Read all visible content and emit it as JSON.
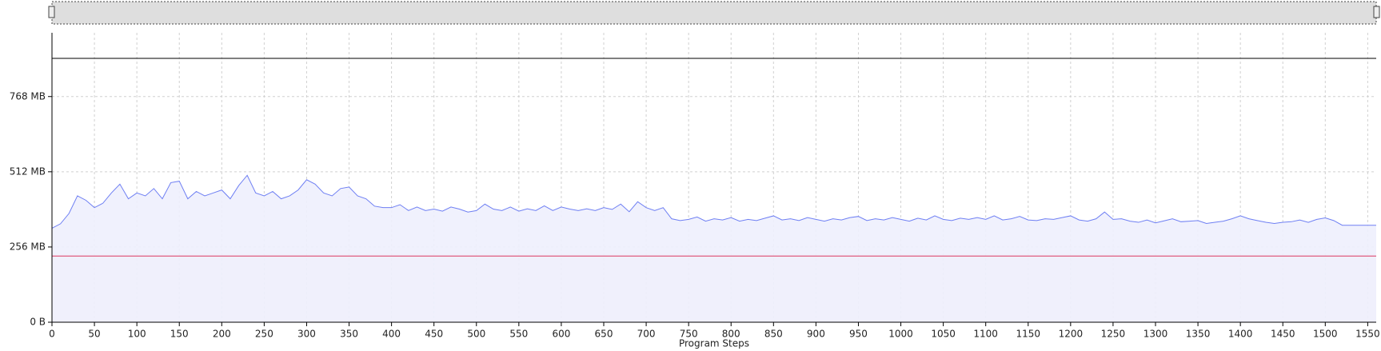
{
  "chart_data": {
    "type": "line",
    "x_label": "Program Steps",
    "x": [
      0,
      10,
      20,
      30,
      40,
      50,
      60,
      70,
      80,
      90,
      100,
      110,
      120,
      130,
      140,
      150,
      160,
      170,
      180,
      190,
      200,
      210,
      220,
      230,
      240,
      250,
      260,
      270,
      280,
      290,
      300,
      310,
      320,
      330,
      340,
      350,
      360,
      370,
      380,
      390,
      400,
      410,
      420,
      430,
      440,
      450,
      460,
      470,
      480,
      490,
      500,
      510,
      520,
      530,
      540,
      550,
      560,
      570,
      580,
      590,
      600,
      610,
      620,
      630,
      640,
      650,
      660,
      670,
      680,
      690,
      700,
      710,
      720,
      730,
      740,
      750,
      760,
      770,
      780,
      790,
      800,
      810,
      820,
      830,
      840,
      850,
      860,
      870,
      880,
      890,
      900,
      910,
      920,
      930,
      940,
      950,
      960,
      970,
      980,
      990,
      1000,
      1010,
      1020,
      1030,
      1040,
      1050,
      1060,
      1070,
      1080,
      1090,
      1100,
      1110,
      1120,
      1130,
      1140,
      1150,
      1160,
      1170,
      1180,
      1190,
      1200,
      1210,
      1220,
      1230,
      1240,
      1250,
      1260,
      1270,
      1280,
      1290,
      1300,
      1310,
      1320,
      1330,
      1340,
      1350,
      1360,
      1370,
      1380,
      1390,
      1400,
      1410,
      1420,
      1430,
      1440,
      1450,
      1460,
      1470,
      1480,
      1490,
      1500,
      1510,
      1520,
      1530,
      1540,
      1550,
      1560
    ],
    "series": [
      {
        "color": "#6e7ff3",
        "fill": "#eef0fd",
        "values": [
          320,
          335,
          370,
          430,
          415,
          390,
          405,
          440,
          470,
          420,
          440,
          430,
          455,
          420,
          475,
          480,
          420,
          445,
          430,
          440,
          450,
          420,
          465,
          500,
          440,
          430,
          445,
          420,
          430,
          450,
          485,
          470,
          440,
          430,
          455,
          460,
          430,
          420,
          395,
          390,
          390,
          400,
          380,
          392,
          380,
          385,
          378,
          392,
          385,
          375,
          380,
          402,
          385,
          380,
          392,
          378,
          386,
          380,
          396,
          380,
          392,
          385,
          380,
          386,
          380,
          390,
          384,
          402,
          376,
          410,
          390,
          380,
          390,
          352,
          346,
          350,
          358,
          344,
          352,
          348,
          356,
          344,
          350,
          346,
          354,
          362,
          348,
          352,
          346,
          356,
          350,
          344,
          352,
          348,
          356,
          360,
          346,
          352,
          348,
          356,
          350,
          344,
          354,
          348,
          362,
          350,
          346,
          354,
          350,
          356,
          350,
          362,
          348,
          352,
          360,
          348,
          346,
          352,
          350,
          356,
          362,
          348,
          344,
          352,
          375,
          350,
          352,
          344,
          340,
          348,
          338,
          345,
          352,
          342,
          344,
          346,
          336,
          340,
          344,
          352,
          362,
          352,
          346,
          340,
          336,
          340,
          342,
          348,
          340,
          350,
          355,
          346,
          330,
          330,
          330,
          330,
          330
        ]
      }
    ],
    "reference_lines": [
      {
        "value": 898,
        "color": "#333333"
      },
      {
        "value": 225,
        "color": "#e26a8a",
        "fill": "#fdeff1"
      }
    ],
    "xlim": [
      0,
      1560
    ],
    "ylim": [
      0,
      985
    ],
    "xticks": [
      0,
      50,
      100,
      150,
      200,
      250,
      300,
      350,
      400,
      450,
      500,
      550,
      600,
      650,
      700,
      750,
      800,
      850,
      900,
      950,
      1000,
      1050,
      1100,
      1150,
      1200,
      1250,
      1300,
      1350,
      1400,
      1450,
      1500,
      1550
    ],
    "yticks": [
      {
        "value": 0,
        "label": "0 B"
      },
      {
        "value": 256,
        "label": "256 MB"
      },
      {
        "value": 512,
        "label": "512 MB"
      },
      {
        "value": 768,
        "label": "768 MB"
      }
    ],
    "grid": true
  }
}
